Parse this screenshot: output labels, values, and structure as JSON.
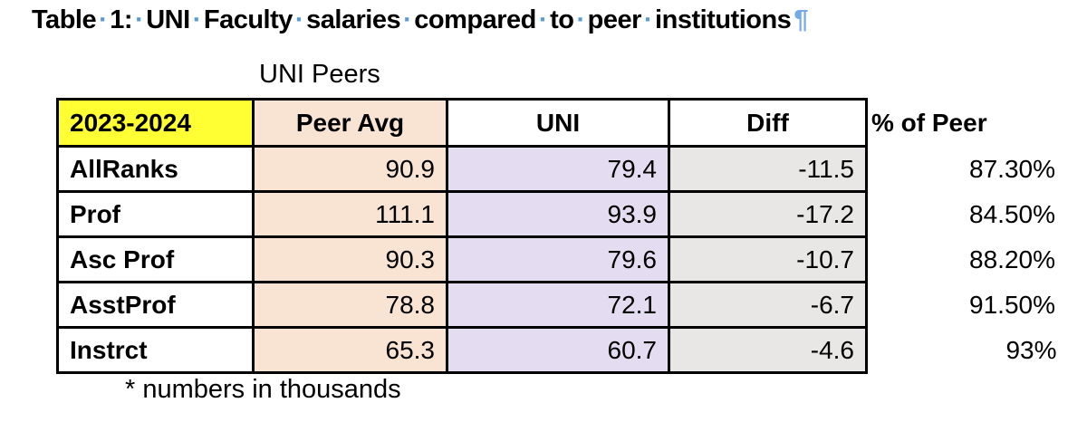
{
  "title": {
    "words": [
      "Table",
      "1:",
      "UNI",
      "Faculty",
      "salaries",
      "compared",
      "to",
      "peer",
      "institutions"
    ],
    "space_dot": "·",
    "pilcrow": "¶"
  },
  "table": {
    "caption": "UNI Peers",
    "columns": [
      {
        "key": "label",
        "header": "2023-2024"
      },
      {
        "key": "peer_avg",
        "header": "Peer Avg"
      },
      {
        "key": "uni",
        "header": "UNI"
      },
      {
        "key": "diff",
        "header": "Diff"
      },
      {
        "key": "pct_of_peer",
        "header": "% of Peer"
      }
    ],
    "rows": [
      {
        "label": "AllRanks",
        "peer_avg": "90.9",
        "uni": "79.4",
        "diff": "-11.5",
        "pct_of_peer": "87.30%"
      },
      {
        "label": "Prof",
        "peer_avg": "111.1",
        "uni": "93.9",
        "diff": "-17.2",
        "pct_of_peer": "84.50%"
      },
      {
        "label": "Asc Prof",
        "peer_avg": "90.3",
        "uni": "79.6",
        "diff": "-10.7",
        "pct_of_peer": "88.20%"
      },
      {
        "label": "AsstProf",
        "peer_avg": "78.8",
        "uni": "72.1",
        "diff": "-6.7",
        "pct_of_peer": "91.50%"
      },
      {
        "label": "Instrct",
        "peer_avg": "65.3",
        "uni": "60.7",
        "diff": "-4.6",
        "pct_of_peer": "93%"
      }
    ],
    "footnote": "* numbers in thousands"
  },
  "colors": {
    "header_label_bg": "#FFFF33",
    "peer_avg_bg": "#F9E3D2",
    "uni_bg": "#E4DCF0",
    "diff_bg": "#E8E7E5",
    "mark_blue": "#5B9BD5",
    "pilcrow_blue": "#74AAE8",
    "border_color": "#000000"
  }
}
